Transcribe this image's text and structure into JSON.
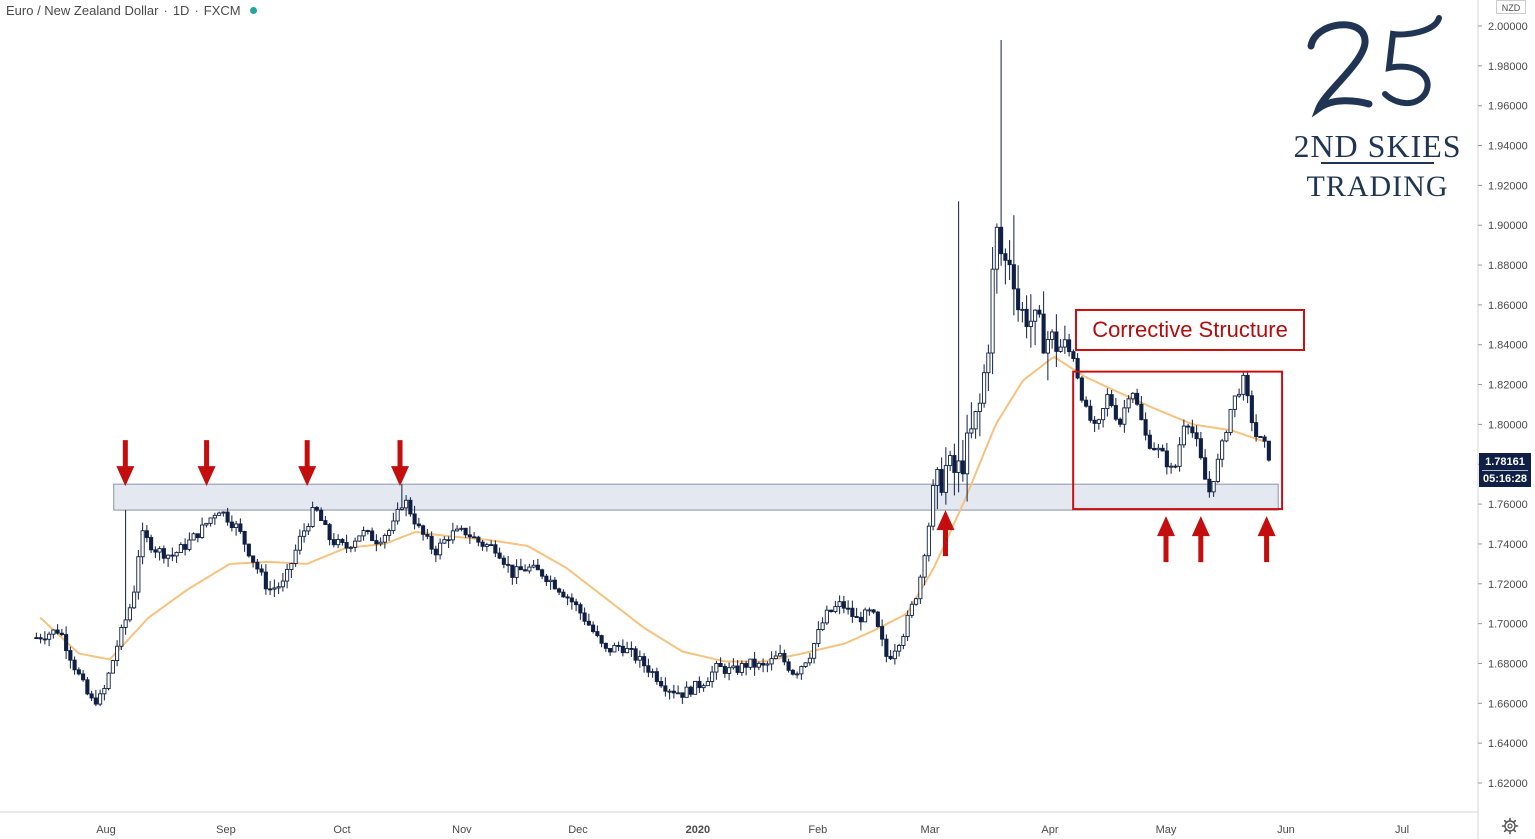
{
  "header": {
    "symbol": "Euro / New Zealand Dollar",
    "interval": "1D",
    "exchange": "FXCM"
  },
  "price_axis": {
    "currency": "NZD",
    "current_price": "1.78161",
    "countdown": "05:16:28"
  },
  "annotations": {
    "corrective_label": "Corrective Structure"
  },
  "logo": {
    "mark": "25",
    "line1": "2ND SKIES",
    "line2": "TRADING"
  },
  "colors": {
    "candle": "#0f1f45",
    "moving_average": "#f7c27e",
    "support_zone_fill": "#e4e9f1",
    "support_zone_border": "#8a93a8",
    "annotation_red": "#c40e0e",
    "logo_navy": "#1f3553"
  },
  "icons": [
    "up-arrow-icon",
    "down-arrow-icon",
    "settings-icon",
    "status-dot-icon"
  ],
  "chart_data": {
    "type": "candlestick",
    "title": "",
    "xlabel": "",
    "ylabel": "",
    "ylim": [
      1.605,
      2.005
    ],
    "y_ticks": [
      "2.00000",
      "1.98000",
      "1.96000",
      "1.94000",
      "1.92000",
      "1.90000",
      "1.88000",
      "1.86000",
      "1.84000",
      "1.82000",
      "1.80000",
      "1.78000",
      "1.76000",
      "1.74000",
      "1.72000",
      "1.70000",
      "1.68000",
      "1.66000",
      "1.64000",
      "1.62000"
    ],
    "x_ticks": [
      "Aug",
      "Sep",
      "Oct",
      "Nov",
      "Dec",
      "2020",
      "Feb",
      "Mar",
      "Apr",
      "May",
      "Jun",
      "Jul"
    ],
    "support_zone": [
      1.757,
      1.77
    ],
    "corrective_box_range": [
      1.7575,
      1.8265
    ],
    "series": [
      {
        "name": "",
        "kind": "moving_average",
        "anchors": [
          [
            "2019-07-15",
            1.703
          ],
          [
            "2019-07-25",
            1.685
          ],
          [
            "2019-08-02",
            1.682
          ],
          [
            "2019-08-12",
            1.703
          ],
          [
            "2019-08-22",
            1.717
          ],
          [
            "2019-09-02",
            1.73
          ],
          [
            "2019-09-12",
            1.731
          ],
          [
            "2019-09-22",
            1.73
          ],
          [
            "2019-10-02",
            1.738
          ],
          [
            "2019-10-12",
            1.74
          ],
          [
            "2019-10-20",
            1.746
          ],
          [
            "2019-10-28",
            1.744
          ],
          [
            "2019-11-08",
            1.742
          ],
          [
            "2019-11-18",
            1.739
          ],
          [
            "2019-11-28",
            1.728
          ],
          [
            "2019-12-08",
            1.713
          ],
          [
            "2019-12-18",
            1.698
          ],
          [
            "2019-12-28",
            1.686
          ],
          [
            "2020-01-08",
            1.681
          ],
          [
            "2020-01-18",
            1.681
          ],
          [
            "2020-01-28",
            1.685
          ],
          [
            "2020-02-08",
            1.69
          ],
          [
            "2020-02-16",
            1.697
          ],
          [
            "2020-02-24",
            1.705
          ],
          [
            "2020-03-02",
            1.728
          ],
          [
            "2020-03-10",
            1.762
          ],
          [
            "2020-03-18",
            1.8
          ],
          [
            "2020-03-25",
            1.822
          ],
          [
            "2020-04-02",
            1.834
          ],
          [
            "2020-04-10",
            1.824
          ],
          [
            "2020-04-20",
            1.815
          ],
          [
            "2020-04-28",
            1.808
          ],
          [
            "2020-05-08",
            1.8
          ],
          [
            "2020-05-18",
            1.797
          ],
          [
            "2020-05-27",
            1.791
          ]
        ]
      },
      {
        "name": "",
        "kind": "candles_close",
        "anchors": [
          [
            "2019-07-14",
            1.693
          ],
          [
            "2019-07-20",
            1.697
          ],
          [
            "2019-07-24",
            1.678
          ],
          [
            "2019-07-28",
            1.661
          ],
          [
            "2019-07-31",
            1.663
          ],
          [
            "2019-08-04",
            1.69
          ],
          [
            "2019-08-08",
            1.713
          ],
          [
            "2019-08-10",
            1.745
          ],
          [
            "2019-08-14",
            1.737
          ],
          [
            "2019-08-18",
            1.734
          ],
          [
            "2019-08-22",
            1.74
          ],
          [
            "2019-08-26",
            1.748
          ],
          [
            "2019-08-30",
            1.758
          ],
          [
            "2019-09-04",
            1.748
          ],
          [
            "2019-09-08",
            1.732
          ],
          [
            "2019-09-12",
            1.717
          ],
          [
            "2019-09-16",
            1.72
          ],
          [
            "2019-09-20",
            1.742
          ],
          [
            "2019-09-24",
            1.758
          ],
          [
            "2019-09-28",
            1.742
          ],
          [
            "2019-10-02",
            1.738
          ],
          [
            "2019-10-06",
            1.746
          ],
          [
            "2019-10-10",
            1.742
          ],
          [
            "2019-10-14",
            1.748
          ],
          [
            "2019-10-17",
            1.763
          ],
          [
            "2019-10-21",
            1.747
          ],
          [
            "2019-10-25",
            1.736
          ],
          [
            "2019-10-29",
            1.745
          ],
          [
            "2019-11-02",
            1.746
          ],
          [
            "2019-11-06",
            1.74
          ],
          [
            "2019-11-10",
            1.738
          ],
          [
            "2019-11-14",
            1.725
          ],
          [
            "2019-11-18",
            1.728
          ],
          [
            "2019-11-22",
            1.725
          ],
          [
            "2019-11-26",
            1.718
          ],
          [
            "2019-11-30",
            1.71
          ],
          [
            "2019-12-04",
            1.699
          ],
          [
            "2019-12-08",
            1.686
          ],
          [
            "2019-12-12",
            1.689
          ],
          [
            "2019-12-16",
            1.683
          ],
          [
            "2019-12-20",
            1.676
          ],
          [
            "2019-12-24",
            1.668
          ],
          [
            "2019-12-28",
            1.665
          ],
          [
            "2020-01-02",
            1.67
          ],
          [
            "2020-01-06",
            1.678
          ],
          [
            "2020-01-10",
            1.676
          ],
          [
            "2020-01-14",
            1.68
          ],
          [
            "2020-01-18",
            1.678
          ],
          [
            "2020-01-22",
            1.684
          ],
          [
            "2020-01-26",
            1.675
          ],
          [
            "2020-01-30",
            1.685
          ],
          [
            "2020-02-03",
            1.704
          ],
          [
            "2020-02-07",
            1.71
          ],
          [
            "2020-02-11",
            1.702
          ],
          [
            "2020-02-15",
            1.706
          ],
          [
            "2020-02-19",
            1.682
          ],
          [
            "2020-02-23",
            1.695
          ],
          [
            "2020-02-27",
            1.718
          ],
          [
            "2020-03-02",
            1.765
          ],
          [
            "2020-03-05",
            1.778
          ],
          [
            "2020-03-08",
            1.775
          ],
          [
            "2020-03-11",
            1.79
          ],
          [
            "2020-03-14",
            1.81
          ],
          [
            "2020-03-16",
            1.84
          ],
          [
            "2020-03-18",
            1.898
          ],
          [
            "2020-03-20",
            1.88
          ],
          [
            "2020-03-22",
            1.885
          ],
          [
            "2020-03-24",
            1.856
          ],
          [
            "2020-03-26",
            1.855
          ],
          [
            "2020-03-30",
            1.845
          ],
          [
            "2020-04-03",
            1.84
          ],
          [
            "2020-04-07",
            1.835
          ],
          [
            "2020-04-10",
            1.808
          ],
          [
            "2020-04-13",
            1.796
          ],
          [
            "2020-04-16",
            1.815
          ],
          [
            "2020-04-19",
            1.8
          ],
          [
            "2020-04-22",
            1.82
          ],
          [
            "2020-04-26",
            1.792
          ],
          [
            "2020-04-30",
            1.785
          ],
          [
            "2020-05-03",
            1.775
          ],
          [
            "2020-05-06",
            1.805
          ],
          [
            "2020-05-09",
            1.79
          ],
          [
            "2020-05-12",
            1.765
          ],
          [
            "2020-05-15",
            1.785
          ],
          [
            "2020-05-18",
            1.81
          ],
          [
            "2020-05-21",
            1.822
          ],
          [
            "2020-05-24",
            1.795
          ],
          [
            "2020-05-27",
            1.788
          ],
          [
            "2020-05-28",
            1.7816
          ]
        ]
      }
    ],
    "arrows_down_at": [
      [
        "2019-08-06",
        1.77
      ],
      [
        "2019-08-27",
        1.77
      ],
      [
        "2019-09-22",
        1.77
      ],
      [
        "2019-10-16",
        1.77
      ]
    ],
    "arrows_up_at": [
      [
        "2020-03-05",
        1.76
      ],
      [
        "2020-05-01",
        1.757
      ],
      [
        "2020-05-10",
        1.757
      ],
      [
        "2020-05-27",
        1.757
      ]
    ]
  }
}
